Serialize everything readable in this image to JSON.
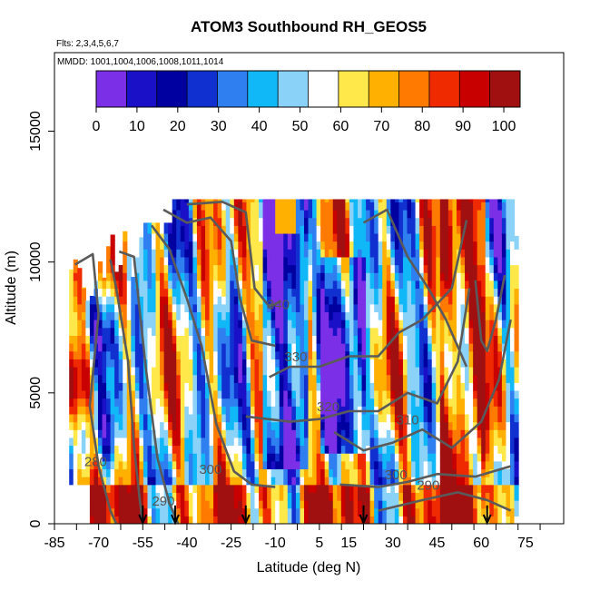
{
  "chart_data": {
    "type": "heatmap",
    "title": "ATOM3 Southbound RH_GEOS5",
    "flights_note": "Flts: 2,3,4,5,6,7",
    "mmdd_note": "MMDD: 1001,1004,1006,1008,1011,1014",
    "xlabel": "Latitude (deg N)",
    "ylabel": "Altitude (m)",
    "xlim": [
      -85,
      88
    ],
    "ylim": [
      0,
      18000
    ],
    "x_ticks": [
      -85,
      -70,
      -55,
      -40,
      -25,
      -10,
      5,
      15,
      30,
      45,
      60,
      75
    ],
    "y_ticks": [
      0,
      5000,
      10000,
      15000
    ],
    "colorbar": {
      "min": 0,
      "max": 104,
      "ticks": [
        0,
        10,
        20,
        30,
        40,
        50,
        60,
        70,
        80,
        90,
        100
      ],
      "colors": [
        "#7b2fe6",
        "#1a10c8",
        "#0000a0",
        "#1030d0",
        "#2f7ff0",
        "#10b8f8",
        "#8ad2f8",
        "#ffffff",
        "#ffe84a",
        "#ffb000",
        "#ff7a00",
        "#f02a00",
        "#c80000",
        "#a01010"
      ]
    },
    "contours": [
      {
        "label": "280",
        "label_lat": -71,
        "label_alt": 2200
      },
      {
        "label": "290",
        "label_lat": -48,
        "label_alt": 700
      },
      {
        "label": "300",
        "label_lat": -32,
        "label_alt": 1900
      },
      {
        "label": "310",
        "label_lat": 35,
        "label_alt": 3800
      },
      {
        "label": "300",
        "label_lat": 31,
        "label_alt": 1700
      },
      {
        "label": "290",
        "label_lat": 42,
        "label_alt": 1300
      },
      {
        "label": "320",
        "label_lat": 8,
        "label_alt": 4300
      },
      {
        "label": "330",
        "label_lat": -3,
        "label_alt": 6200
      },
      {
        "label": "340",
        "label_lat": -9,
        "label_alt": 8200
      }
    ],
    "arrow_latitudes": [
      -55,
      -44,
      -20,
      20,
      62
    ]
  }
}
